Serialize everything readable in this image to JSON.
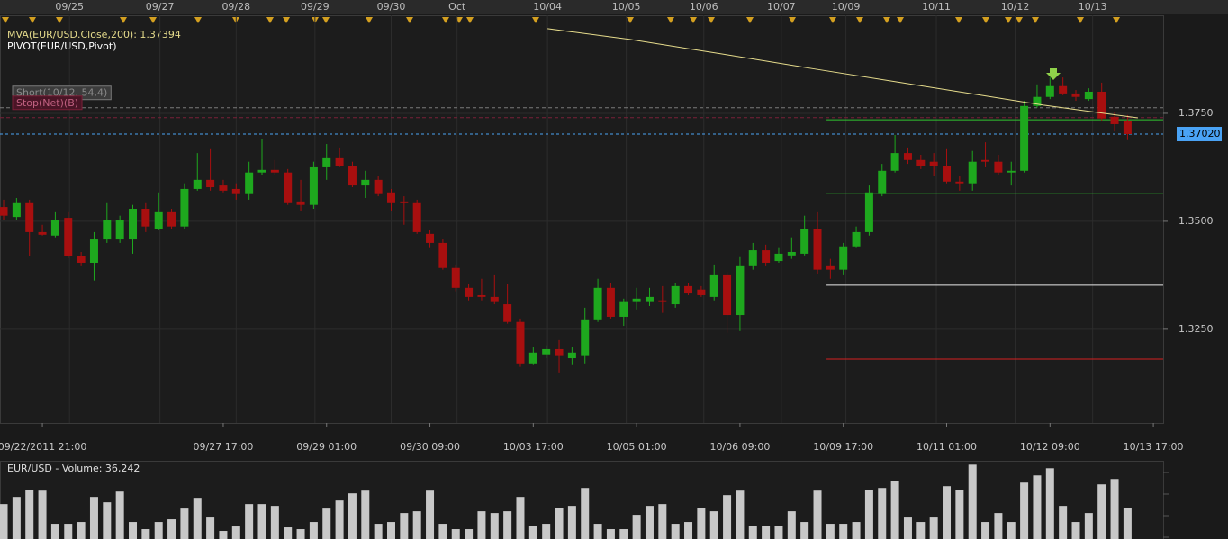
{
  "chart_data": [
    {
      "type": "candlestick",
      "legend": [
        {
          "name": "MVA(EUR/USD.Close,200): 1.37394",
          "color": "#e6dc8c"
        },
        {
          "name": "PIVOT(EUR/USD,Pivot)",
          "color": "#ffffff"
        }
      ],
      "xlim": [
        -0.28,
        89.76
      ],
      "ylim": [
        1.3033,
        1.395
      ],
      "yticks": [
        {
          "value": 1.325,
          "label": "1.3250"
        },
        {
          "value": 1.35,
          "label": "1.3500"
        },
        {
          "value": 1.375,
          "label": "1.3750"
        }
      ],
      "xticks": [
        {
          "value": 3,
          "label": "09/22/2011 21:00"
        },
        {
          "value": 17,
          "label": "09/27 17:00"
        },
        {
          "value": 25,
          "label": "09/29 01:00"
        },
        {
          "value": 33,
          "label": "09/30 09:00"
        },
        {
          "value": 41,
          "label": "10/03 17:00"
        },
        {
          "value": 49,
          "label": "10/05 01:00"
        },
        {
          "value": 57,
          "label": "10/06 09:00"
        },
        {
          "value": 65,
          "label": "10/09 17:00"
        },
        {
          "value": 73,
          "label": "10/11 01:00"
        },
        {
          "value": 81,
          "label": "10/12 09:00"
        },
        {
          "value": 89,
          "label": "10/13 17:00"
        }
      ],
      "top_ticks": [
        {
          "value": 5.1,
          "label": "09/25"
        },
        {
          "value": 12.1,
          "label": "09/27"
        },
        {
          "value": 18,
          "label": "09/28"
        },
        {
          "value": 24.1,
          "label": "09/29"
        },
        {
          "value": 30,
          "label": "09/30"
        },
        {
          "value": 35.1,
          "label": "Oct"
        },
        {
          "value": 42.1,
          "label": "10/04"
        },
        {
          "value": 48.2,
          "label": "10/05"
        },
        {
          "value": 54.2,
          "label": "10/06"
        },
        {
          "value": 60.2,
          "label": "10/07"
        },
        {
          "value": 65.2,
          "label": "10/09"
        },
        {
          "value": 72.2,
          "label": "10/11"
        },
        {
          "value": 78.3,
          "label": "10/12"
        },
        {
          "value": 84.3,
          "label": "10/13"
        }
      ],
      "grid": true,
      "up_color": "#1ea81e",
      "down_color": "#a80f0f",
      "open": [
        1.3533,
        1.351,
        1.3542,
        1.3475,
        1.3467,
        1.3508,
        1.3419,
        1.3404,
        1.3458,
        1.3458,
        1.3458,
        1.3529,
        1.3483,
        1.3521,
        1.3488,
        1.3575,
        1.3596,
        1.3583,
        1.3575,
        1.3563,
        1.3613,
        1.3619,
        1.3613,
        1.3546,
        1.3538,
        1.3625,
        1.3646,
        1.3629,
        1.3583,
        1.3596,
        1.3567,
        1.3546,
        1.3542,
        1.3471,
        1.345,
        1.3392,
        1.3346,
        1.3329,
        1.3325,
        1.3308,
        1.3267,
        1.3171,
        1.3192,
        1.3204,
        1.3183,
        1.3188,
        1.3271,
        1.3346,
        1.3279,
        1.3313,
        1.3313,
        1.3317,
        1.3308,
        1.335,
        1.3342,
        1.3325,
        1.3375,
        1.3283,
        1.3396,
        1.3433,
        1.3408,
        1.3421,
        1.3425,
        1.3483,
        1.3396,
        1.3388,
        1.3442,
        1.3475,
        1.3563,
        1.3617,
        1.3658,
        1.3642,
        1.3638,
        1.3629,
        1.3592,
        1.3588,
        1.3642,
        1.3638,
        1.3613,
        1.3617,
        1.3767,
        1.3788,
        1.3813,
        1.3796,
        1.3783,
        1.38,
        1.3742,
        1.3733
      ],
      "high": [
        1.355,
        1.3554,
        1.355,
        1.3492,
        1.3521,
        1.3521,
        1.3429,
        1.3475,
        1.3542,
        1.3513,
        1.3538,
        1.3542,
        1.3567,
        1.3529,
        1.3588,
        1.3658,
        1.3667,
        1.3596,
        1.3588,
        1.3638,
        1.369,
        1.3642,
        1.3621,
        1.3596,
        1.3638,
        1.3679,
        1.3671,
        1.3638,
        1.3617,
        1.3604,
        1.3575,
        1.3558,
        1.355,
        1.3479,
        1.3458,
        1.34,
        1.3354,
        1.3367,
        1.3375,
        1.3354,
        1.3275,
        1.3208,
        1.3213,
        1.3225,
        1.3208,
        1.33,
        1.3367,
        1.3358,
        1.3321,
        1.3346,
        1.3346,
        1.335,
        1.3358,
        1.3358,
        1.335,
        1.34,
        1.3383,
        1.3417,
        1.345,
        1.3446,
        1.3438,
        1.3463,
        1.3513,
        1.3521,
        1.3413,
        1.345,
        1.3488,
        1.3583,
        1.3633,
        1.37,
        1.3671,
        1.3654,
        1.3658,
        1.3667,
        1.3604,
        1.3663,
        1.3683,
        1.3654,
        1.3638,
        1.3779,
        1.3817,
        1.3833,
        1.3833,
        1.3804,
        1.3808,
        1.3821,
        1.3754,
        1.3746
      ],
      "low": [
        1.3502,
        1.3504,
        1.3419,
        1.3467,
        1.3463,
        1.3415,
        1.3396,
        1.3363,
        1.345,
        1.345,
        1.3425,
        1.3475,
        1.3479,
        1.3483,
        1.3483,
        1.3571,
        1.3571,
        1.3567,
        1.355,
        1.355,
        1.3608,
        1.3608,
        1.3538,
        1.3525,
        1.3529,
        1.3596,
        1.3625,
        1.3579,
        1.3554,
        1.3558,
        1.3525,
        1.3492,
        1.3471,
        1.3438,
        1.3388,
        1.3338,
        1.3317,
        1.3317,
        1.3308,
        1.3263,
        1.3163,
        1.3167,
        1.3183,
        1.315,
        1.3167,
        1.3171,
        1.3267,
        1.3275,
        1.3258,
        1.3296,
        1.3304,
        1.3288,
        1.33,
        1.3329,
        1.3325,
        1.3317,
        1.3242,
        1.3246,
        1.3388,
        1.3396,
        1.3404,
        1.3413,
        1.3421,
        1.3379,
        1.3367,
        1.3375,
        1.3438,
        1.3467,
        1.3558,
        1.3613,
        1.3633,
        1.3621,
        1.3604,
        1.3588,
        1.3571,
        1.3571,
        1.3625,
        1.3608,
        1.3583,
        1.3613,
        1.3763,
        1.3783,
        1.3792,
        1.3779,
        1.3779,
        1.3733,
        1.3708,
        1.3688
      ],
      "close": [
        1.3513,
        1.3542,
        1.3475,
        1.3469,
        1.3504,
        1.3419,
        1.3404,
        1.3458,
        1.3504,
        1.3504,
        1.3529,
        1.3488,
        1.3521,
        1.3488,
        1.3575,
        1.3596,
        1.3579,
        1.3571,
        1.3563,
        1.3613,
        1.3619,
        1.3613,
        1.3542,
        1.3538,
        1.3625,
        1.3646,
        1.3629,
        1.3583,
        1.3596,
        1.3563,
        1.3542,
        1.3542,
        1.3475,
        1.345,
        1.3392,
        1.3346,
        1.3325,
        1.3325,
        1.3313,
        1.3267,
        1.3171,
        1.3196,
        1.3204,
        1.3188,
        1.3196,
        1.3271,
        1.3346,
        1.3279,
        1.3313,
        1.3321,
        1.3325,
        1.3313,
        1.335,
        1.3333,
        1.3329,
        1.3375,
        1.3283,
        1.3396,
        1.3433,
        1.3404,
        1.3425,
        1.3429,
        1.3483,
        1.3388,
        1.3388,
        1.3442,
        1.3475,
        1.3567,
        1.3617,
        1.3658,
        1.3642,
        1.3629,
        1.3629,
        1.3592,
        1.3588,
        1.3638,
        1.3638,
        1.3613,
        1.3617,
        1.3767,
        1.3788,
        1.3813,
        1.3796,
        1.3788,
        1.38,
        1.3738,
        1.3725,
        1.3702
      ],
      "mva": {
        "color": "#e6dc8c",
        "x": [
          42.1,
          48.5,
          55.5,
          62.5,
          69.5,
          76.5,
          80.5,
          87.8
        ],
        "values": [
          1.3946,
          1.3921,
          1.3888,
          1.3854,
          1.3821,
          1.3788,
          1.3769,
          1.37394
        ]
      },
      "pivot": {
        "start": 63.7,
        "levels": [
          {
            "value": 1.3735,
            "color": "#2fc42f"
          },
          {
            "value": 1.3565,
            "color": "#2fc42f"
          },
          {
            "value": 1.3352,
            "color": "#e8e8e8"
          },
          {
            "value": 1.3181,
            "color": "#d42020"
          }
        ]
      },
      "orders": [
        {
          "label": "Short(10/12, 54.4)",
          "price": 1.3763,
          "color": "#7a7a7a"
        },
        {
          "label": "Stop(Net)(B)",
          "price": 1.374,
          "color": "#7a2038"
        }
      ],
      "last_price": {
        "value": 1.3702,
        "label": "1.37020",
        "color": "#4aa3f5"
      }
    },
    {
      "type": "bar",
      "title": "EUR/USD - Volume: 36,242",
      "color": "#c8c8c8",
      "ylim": [
        0,
        100000
      ],
      "values": [
        42000,
        51600,
        61200,
        60000,
        15600,
        15600,
        18000,
        51600,
        44400,
        58800,
        18000,
        8400,
        18000,
        21600,
        36000,
        50400,
        24000,
        6000,
        12000,
        42000,
        42000,
        39600,
        10800,
        8400,
        18000,
        36000,
        46800,
        56400,
        60000,
        15600,
        18000,
        30000,
        32400,
        60000,
        15600,
        8400,
        8400,
        32400,
        30000,
        32400,
        51600,
        13200,
        15600,
        37200,
        39600,
        63600,
        15600,
        8400,
        8400,
        27600,
        39600,
        42000,
        15600,
        18000,
        37200,
        32400,
        54000,
        60000,
        13200,
        13200,
        13200,
        32400,
        18000,
        60000,
        15600,
        15600,
        18000,
        61200,
        63600,
        73200,
        24000,
        18000,
        24000,
        66000,
        61200,
        94800,
        18000,
        30000,
        18000,
        70800,
        80400,
        90000,
        39600,
        18000,
        30000,
        68400,
        75600,
        36242
      ]
    }
  ]
}
